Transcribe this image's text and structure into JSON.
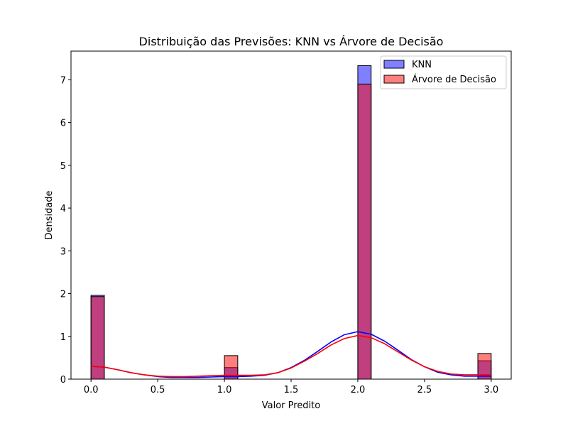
{
  "chart_data": {
    "type": "bar",
    "title": "Distribuição das Previsões: KNN vs Árvore de Decisão",
    "xlabel": "Valor Predito",
    "ylabel": "Densidade",
    "xlim": [
      -0.15,
      3.15
    ],
    "ylim": [
      0,
      7.67
    ],
    "xticks": [
      0.0,
      0.5,
      1.0,
      1.5,
      2.0,
      2.5,
      3.0
    ],
    "xtick_labels": [
      "0.0",
      "0.5",
      "1.0",
      "1.5",
      "2.0",
      "2.5",
      "3.0"
    ],
    "yticks": [
      0,
      1,
      2,
      3,
      4,
      5,
      6,
      7
    ],
    "ytick_labels": [
      "0",
      "1",
      "2",
      "3",
      "4",
      "5",
      "6",
      "7"
    ],
    "grid": false,
    "legend_position": "top-right",
    "bin_width": 0.1,
    "series": [
      {
        "name": "KNN",
        "color": "#0000ff",
        "bins": [
          {
            "x0": 0.0,
            "x1": 0.1,
            "density": 1.96
          },
          {
            "x0": 1.0,
            "x1": 1.1,
            "density": 0.27
          },
          {
            "x0": 2.0,
            "x1": 2.1,
            "density": 7.33
          },
          {
            "x0": 2.9,
            "x1": 3.0,
            "density": 0.43
          }
        ],
        "kde": [
          [
            0.0,
            0.3
          ],
          [
            0.1,
            0.28
          ],
          [
            0.2,
            0.22
          ],
          [
            0.3,
            0.15
          ],
          [
            0.4,
            0.1
          ],
          [
            0.5,
            0.06
          ],
          [
            0.6,
            0.04
          ],
          [
            0.7,
            0.04
          ],
          [
            0.8,
            0.04
          ],
          [
            0.9,
            0.05
          ],
          [
            1.0,
            0.06
          ],
          [
            1.1,
            0.06
          ],
          [
            1.2,
            0.07
          ],
          [
            1.3,
            0.09
          ],
          [
            1.4,
            0.15
          ],
          [
            1.5,
            0.27
          ],
          [
            1.6,
            0.44
          ],
          [
            1.7,
            0.65
          ],
          [
            1.8,
            0.87
          ],
          [
            1.9,
            1.04
          ],
          [
            2.0,
            1.11
          ],
          [
            2.1,
            1.05
          ],
          [
            2.2,
            0.89
          ],
          [
            2.3,
            0.68
          ],
          [
            2.4,
            0.46
          ],
          [
            2.5,
            0.29
          ],
          [
            2.6,
            0.16
          ],
          [
            2.7,
            0.1
          ],
          [
            2.8,
            0.07
          ],
          [
            2.9,
            0.07
          ],
          [
            3.0,
            0.07
          ]
        ]
      },
      {
        "name": "Árvore de Decisão",
        "color": "#ff0000",
        "bins": [
          {
            "x0": 0.0,
            "x1": 0.1,
            "density": 1.93
          },
          {
            "x0": 1.0,
            "x1": 1.1,
            "density": 0.55
          },
          {
            "x0": 2.0,
            "x1": 2.1,
            "density": 6.9
          },
          {
            "x0": 2.9,
            "x1": 3.0,
            "density": 0.6
          }
        ],
        "kde": [
          [
            0.0,
            0.3
          ],
          [
            0.1,
            0.28
          ],
          [
            0.2,
            0.22
          ],
          [
            0.3,
            0.15
          ],
          [
            0.4,
            0.1
          ],
          [
            0.5,
            0.07
          ],
          [
            0.6,
            0.06
          ],
          [
            0.7,
            0.06
          ],
          [
            0.8,
            0.07
          ],
          [
            0.9,
            0.08
          ],
          [
            1.0,
            0.09
          ],
          [
            1.1,
            0.09
          ],
          [
            1.2,
            0.09
          ],
          [
            1.3,
            0.1
          ],
          [
            1.4,
            0.15
          ],
          [
            1.5,
            0.26
          ],
          [
            1.6,
            0.42
          ],
          [
            1.7,
            0.6
          ],
          [
            1.8,
            0.8
          ],
          [
            1.9,
            0.95
          ],
          [
            2.0,
            1.02
          ],
          [
            2.1,
            0.97
          ],
          [
            2.2,
            0.83
          ],
          [
            2.3,
            0.64
          ],
          [
            2.4,
            0.45
          ],
          [
            2.5,
            0.29
          ],
          [
            2.6,
            0.18
          ],
          [
            2.7,
            0.12
          ],
          [
            2.8,
            0.1
          ],
          [
            2.9,
            0.1
          ],
          [
            3.0,
            0.1
          ]
        ]
      }
    ]
  }
}
